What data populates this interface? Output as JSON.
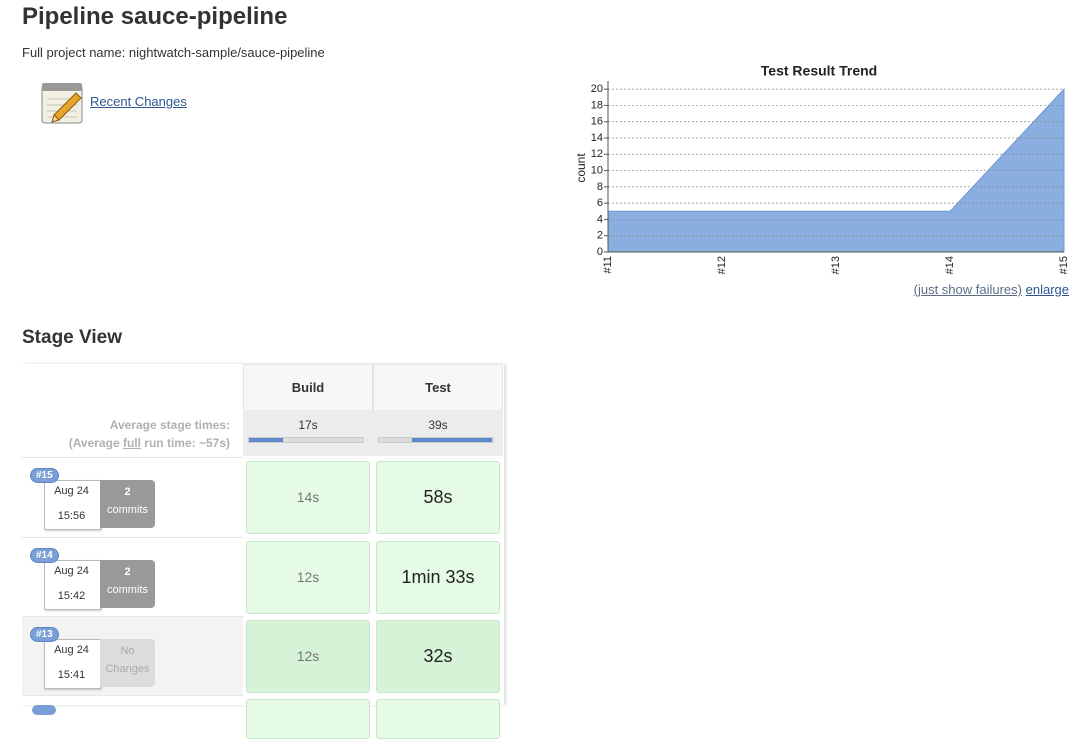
{
  "header": {
    "title": "Pipeline sauce-pipeline",
    "full_name": "Full project name: nightwatch-sample/sauce-pipeline"
  },
  "links": {
    "recent_changes": "Recent Changes",
    "just_show_failures": "(just show failures)",
    "enlarge": "enlarge"
  },
  "chart_data": {
    "type": "area",
    "title": "Test Result Trend",
    "y_label": "count",
    "categories": [
      "#11",
      "#12",
      "#13",
      "#14",
      "#15"
    ],
    "values": [
      5,
      5,
      5,
      5,
      20
    ],
    "color": "#8aaee0",
    "ylim": [
      0,
      21
    ],
    "yticks": [
      0,
      2,
      4,
      6,
      8,
      10,
      12,
      14,
      16,
      18,
      20
    ],
    "grid": true
  },
  "stage_view": {
    "title": "Stage View",
    "stages": [
      "Build",
      "Test"
    ],
    "average_label": "Average stage times:",
    "average_run": {
      "prefix": "(Average ",
      "link": "full",
      "suffix": " run time: ~57s)"
    },
    "averages": [
      "17s",
      "39s"
    ],
    "runs": [
      {
        "id": "#15",
        "date": "Aug 24",
        "time": "15:56",
        "changes": [
          "2",
          "commits"
        ],
        "durations": [
          "14s",
          "58s"
        ]
      },
      {
        "id": "#14",
        "date": "Aug 24",
        "time": "15:42",
        "changes": [
          "2",
          "commits"
        ],
        "durations": [
          "12s",
          "1min 33s"
        ]
      },
      {
        "id": "#13",
        "date": "Aug 24",
        "time": "15:41",
        "changes": [
          "No",
          "Changes"
        ],
        "durations": [
          "12s",
          "32s"
        ]
      }
    ]
  }
}
